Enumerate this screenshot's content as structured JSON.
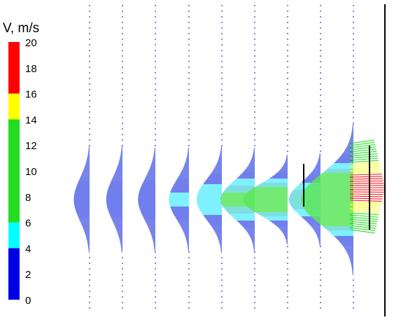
{
  "chart_data": {
    "type": "vector field",
    "title": "V, m/s",
    "colorbar": {
      "ticks": [
        "0",
        "2",
        "4",
        "6",
        "8",
        "10",
        "12",
        "14",
        "16",
        "18",
        "20"
      ],
      "bands": [
        {
          "from": 0,
          "to": 4,
          "color": "#0000e6"
        },
        {
          "from": 4,
          "to": 6,
          "color": "#00ffff"
        },
        {
          "from": 6,
          "to": 14,
          "color": "#22dd22"
        },
        {
          "from": 14,
          "to": 16,
          "color": "#ffff00"
        },
        {
          "from": 16,
          "to": 20,
          "color": "#ff0000"
        }
      ]
    },
    "profiles": [
      {
        "station": 1,
        "peak_speed": 3.0,
        "half_width": 0.3
      },
      {
        "station": 2,
        "peak_speed": 3.1,
        "half_width": 0.3
      },
      {
        "station": 3,
        "peak_speed": 3.3,
        "half_width": 0.29
      },
      {
        "station": 4,
        "peak_speed": 3.8,
        "half_width": 0.28
      },
      {
        "station": 5,
        "peak_speed": 4.8,
        "half_width": 0.28
      },
      {
        "station": 6,
        "peak_speed": 6.5,
        "half_width": 0.26
      },
      {
        "station": 7,
        "peak_speed": 8.5,
        "half_width": 0.22
      },
      {
        "station": 8,
        "peak_speed": 6.0,
        "half_width": 0.24
      },
      {
        "station": 9,
        "peak_speed": 10.0,
        "half_width": 0.36
      },
      {
        "station": 10,
        "peak_speed": 17.0,
        "half_width": 0.36
      }
    ]
  }
}
